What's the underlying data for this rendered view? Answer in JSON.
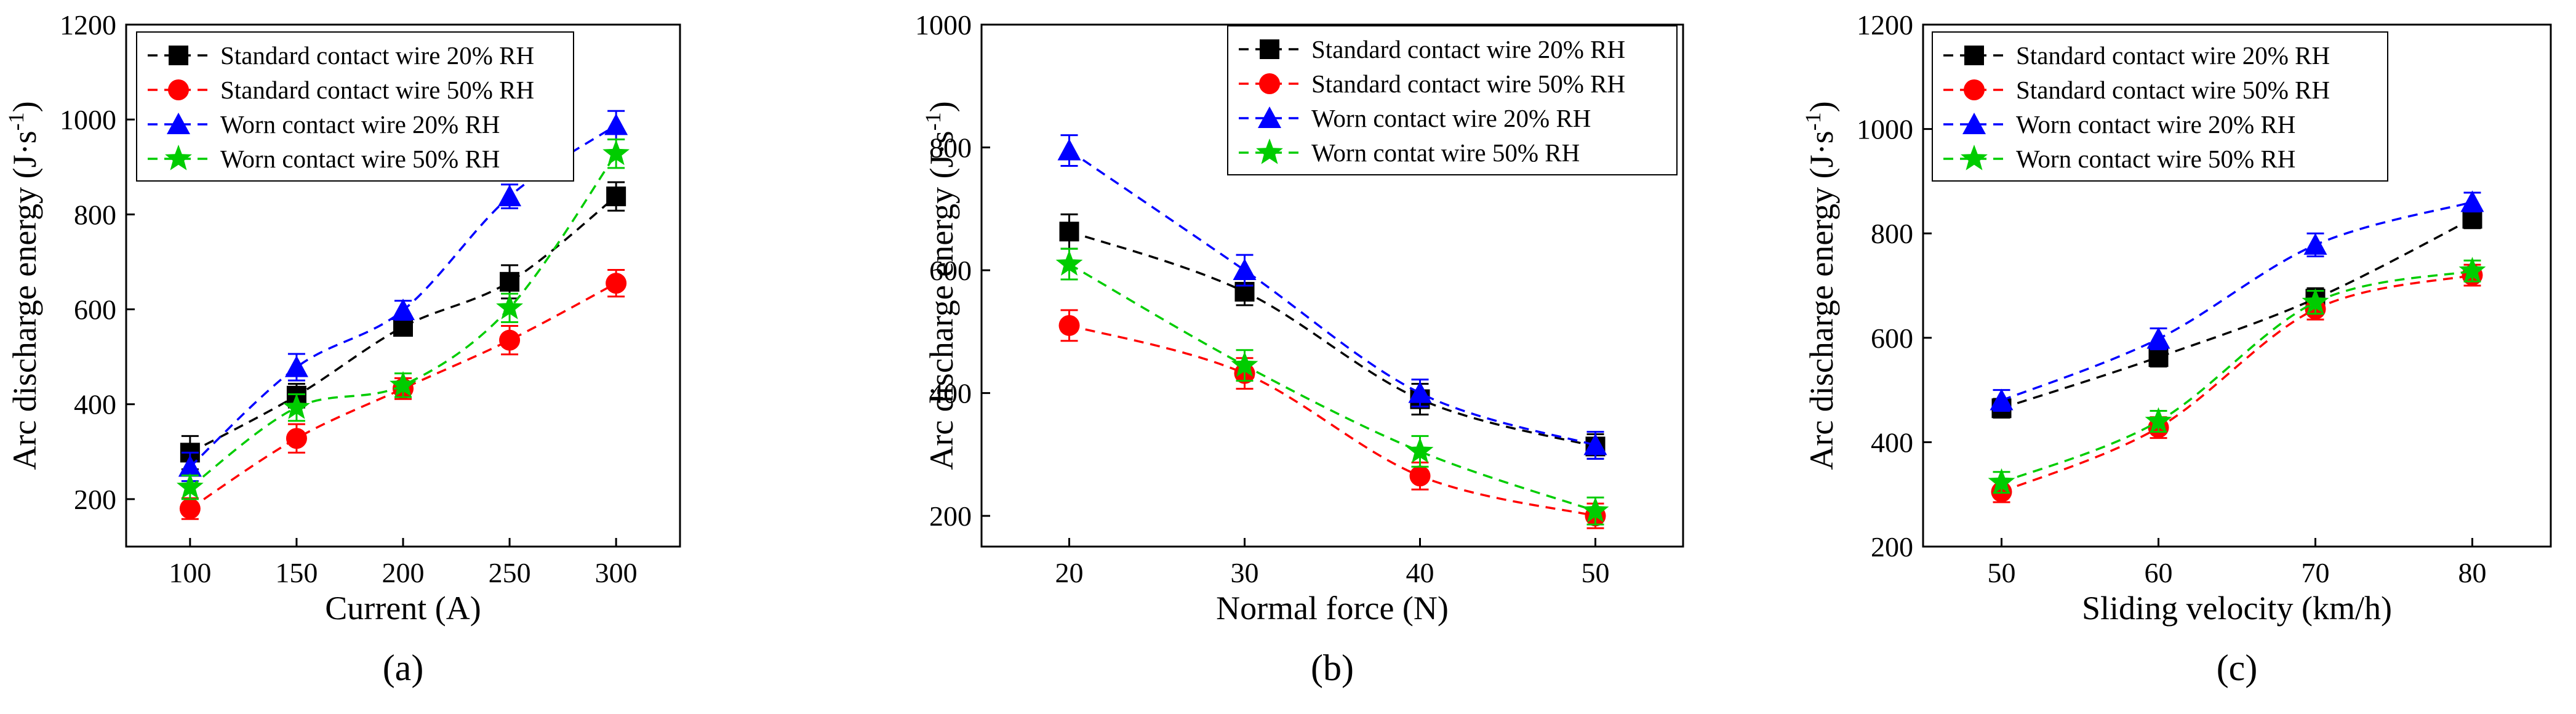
{
  "colors": {
    "black": "#000000",
    "red": "#ff0000",
    "blue": "#0000ff",
    "green": "#00cc00"
  },
  "chart_data": [
    {
      "type": "line",
      "panel_label": "(a)",
      "xlabel": "Current (A)",
      "ylabel": "Arc discharge energy (J·s⁻¹)",
      "ylabel_main": "Arc discharge energy (J·s",
      "ylabel_sup": "-1",
      "ylabel_close": ")",
      "x": [
        100,
        150,
        200,
        250,
        300
      ],
      "xlim": [
        70,
        330
      ],
      "ylim": [
        100,
        1200
      ],
      "xticks": [
        100,
        150,
        200,
        250,
        300
      ],
      "yticks": [
        200,
        400,
        600,
        800,
        1000,
        1200
      ],
      "legend_position": "top-left",
      "grid": false,
      "series": [
        {
          "name": "Standard contact wire 20% RH",
          "color": "black",
          "marker": "square",
          "values": [
            298,
            418,
            563,
            658,
            838
          ],
          "errors": [
            35,
            25,
            18,
            35,
            30
          ]
        },
        {
          "name": "Standard contact wire 50% RH",
          "color": "red",
          "marker": "circle",
          "values": [
            180,
            328,
            433,
            535,
            655
          ],
          "errors": [
            22,
            30,
            22,
            30,
            28
          ]
        },
        {
          "name": "Worn contact wire 20% RH",
          "color": "blue",
          "marker": "triangle",
          "values": [
            268,
            478,
            598,
            838,
            988
          ],
          "errors": [
            30,
            28,
            20,
            25,
            30
          ]
        },
        {
          "name": "Worn contact wire 50% RH",
          "color": "green",
          "marker": "star",
          "values": [
            225,
            393,
            440,
            603,
            928
          ],
          "errors": [
            25,
            28,
            25,
            30,
            30
          ]
        }
      ]
    },
    {
      "type": "line",
      "panel_label": "(b)",
      "xlabel": "Normal force (N)",
      "ylabel": "Arc discharge energy (J·s⁻¹)",
      "ylabel_main": "Arc discharge energy (J·s",
      "ylabel_sup": "-1",
      "ylabel_close": ")",
      "x": [
        20,
        30,
        40,
        50
      ],
      "xlim": [
        15,
        55
      ],
      "ylim": [
        150,
        1000
      ],
      "xticks": [
        20,
        30,
        40,
        50
      ],
      "yticks": [
        200,
        400,
        600,
        800,
        1000
      ],
      "legend_position": "top-right",
      "grid": false,
      "series": [
        {
          "name": "Standard contact wire 20% RH",
          "color": "black",
          "marker": "square",
          "values": [
            663,
            565,
            390,
            313
          ],
          "errors": [
            28,
            22,
            25,
            20
          ]
        },
        {
          "name": "Standard contact wire 50% RH",
          "color": "red",
          "marker": "circle",
          "values": [
            510,
            432,
            265,
            200
          ],
          "errors": [
            25,
            25,
            22,
            20
          ]
        },
        {
          "name": "Worn contact wire 20% RH",
          "color": "blue",
          "marker": "triangle",
          "values": [
            795,
            600,
            400,
            315
          ],
          "errors": [
            25,
            25,
            22,
            22
          ]
        },
        {
          "name": "Worn contat wire 50% RH",
          "color": "green",
          "marker": "star",
          "values": [
            610,
            445,
            305,
            208
          ],
          "errors": [
            25,
            25,
            25,
            22
          ]
        }
      ]
    },
    {
      "type": "line",
      "panel_label": "(c)",
      "xlabel": "Sliding velocity (km/h)",
      "ylabel": "Arc discharge energy (J·s⁻¹)",
      "ylabel_main": "Arc discharge energy (J·s",
      "ylabel_sup": "-1",
      "ylabel_close": ")",
      "x": [
        50,
        60,
        70,
        80
      ],
      "xlim": [
        45,
        85
      ],
      "ylim": [
        200,
        1200
      ],
      "xticks": [
        50,
        60,
        70,
        80
      ],
      "yticks": [
        200,
        400,
        600,
        800,
        1000,
        1200
      ],
      "legend_position": "top-left",
      "grid": false,
      "series": [
        {
          "name": "Standard contact wire 20% RH",
          "color": "black",
          "marker": "square",
          "values": [
            465,
            563,
            675,
            828
          ],
          "errors": [
            18,
            18,
            20,
            18
          ]
        },
        {
          "name": "Standard contact wire 50% RH",
          "color": "red",
          "marker": "circle",
          "values": [
            305,
            428,
            655,
            720
          ],
          "errors": [
            20,
            20,
            20,
            20
          ]
        },
        {
          "name": "Worn contact wire 20% RH",
          "color": "blue",
          "marker": "triangle",
          "values": [
            480,
            598,
            778,
            860
          ],
          "errors": [
            20,
            20,
            22,
            18
          ]
        },
        {
          "name": "Worn contact wire 50% RH",
          "color": "green",
          "marker": "star",
          "values": [
            323,
            440,
            668,
            728
          ],
          "errors": [
            20,
            20,
            22,
            20
          ]
        }
      ]
    }
  ]
}
